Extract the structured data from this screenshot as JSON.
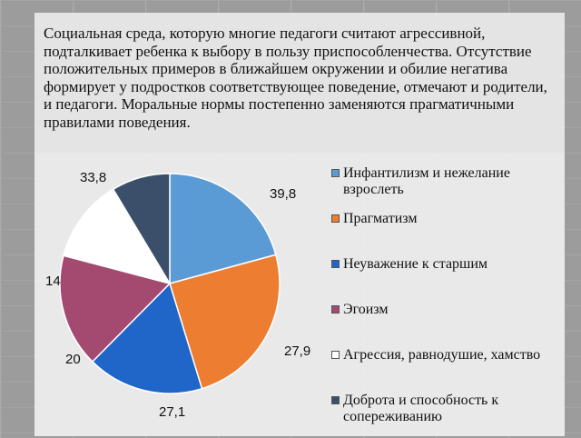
{
  "text": {
    "paragraph": "Социальная среда, которую многие педагоги считают агрессивной, подталкивает ребенка к выбору в пользу приспособленчества. Отсутствие положительных примеров в ближайшем окружении и обилие негатива формирует у подростков соответствующее поведение, отмечают и родители, и педагоги. Моральные нормы постепенно заменяются прагматичными правилами поведения."
  },
  "chart_data": {
    "type": "pie",
    "title": "",
    "legend_position": "right",
    "slices": [
      {
        "label": "Инфантилизм и нежелание взрослеть",
        "value": 33.8,
        "display": "33,8",
        "color": "#5b9bd5"
      },
      {
        "label": "Прагматизм",
        "value": 39.8,
        "display": "39,8",
        "color": "#ed7d31"
      },
      {
        "label": "Неуважение к старшим",
        "value": 27.9,
        "display": "27,9",
        "color": "#1f66c8"
      },
      {
        "label": "Эгоизм",
        "value": 27.1,
        "display": "27,1",
        "color": "#a44a70"
      },
      {
        "label": "Агрессия, равнодушие, хамство",
        "value": 20,
        "display": "20",
        "color": "#ffffff"
      },
      {
        "label": "Доброта и способность к сопереживанию",
        "value": 14,
        "display": "14",
        "color": "#3b4f6b"
      }
    ]
  }
}
